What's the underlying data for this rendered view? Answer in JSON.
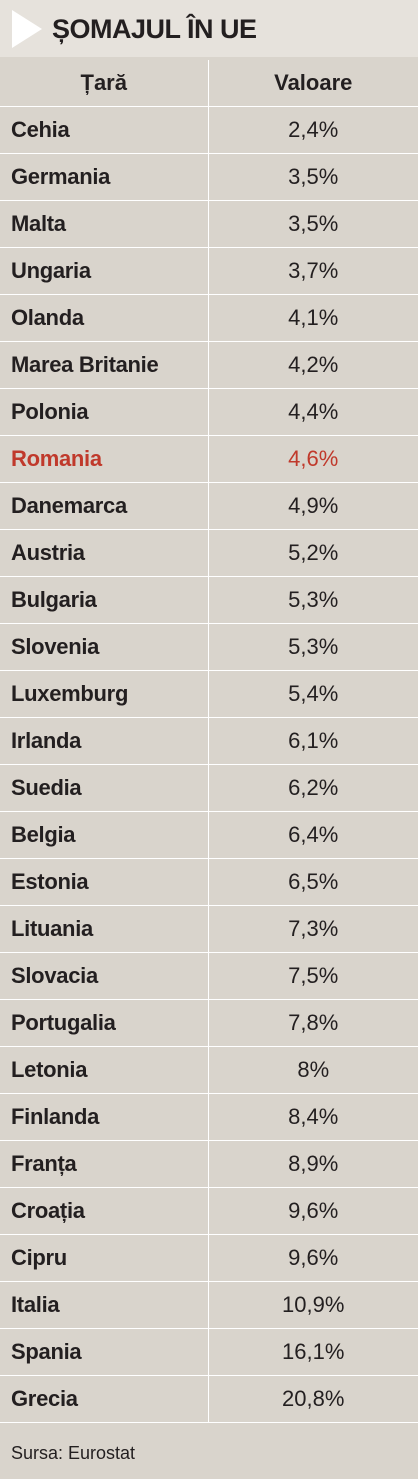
{
  "title": "ȘOMAJUL ÎN UE",
  "columns": [
    "Țară",
    "Valoare"
  ],
  "highlight_color": "#c0392b",
  "rows": [
    {
      "country": "Cehia",
      "value": "2,4%"
    },
    {
      "country": "Germania",
      "value": "3,5%"
    },
    {
      "country": "Malta",
      "value": "3,5%"
    },
    {
      "country": "Ungaria",
      "value": "3,7%"
    },
    {
      "country": "Olanda",
      "value": "4,1%"
    },
    {
      "country": "Marea Britanie",
      "value": "4,2%"
    },
    {
      "country": "Polonia",
      "value": "4,4%"
    },
    {
      "country": "Romania",
      "value": "4,6%",
      "highlight": true
    },
    {
      "country": "Danemarca",
      "value": "4,9%"
    },
    {
      "country": "Austria",
      "value": "5,2%"
    },
    {
      "country": "Bulgaria",
      "value": "5,3%"
    },
    {
      "country": "Slovenia",
      "value": "5,3%"
    },
    {
      "country": "Luxemburg",
      "value": "5,4%"
    },
    {
      "country": "Irlanda",
      "value": "6,1%"
    },
    {
      "country": "Suedia",
      "value": "6,2%"
    },
    {
      "country": "Belgia",
      "value": "6,4%"
    },
    {
      "country": "Estonia",
      "value": "6,5%"
    },
    {
      "country": "Lituania",
      "value": "7,3%"
    },
    {
      "country": "Slovacia",
      "value": "7,5%"
    },
    {
      "country": "Portugalia",
      "value": "7,8%"
    },
    {
      "country": "Letonia",
      "value": "8%"
    },
    {
      "country": "Finlanda",
      "value": "8,4%"
    },
    {
      "country": "Franța",
      "value": "8,9%"
    },
    {
      "country": "Croația",
      "value": "9,6%"
    },
    {
      "country": "Cipru",
      "value": "9,6%"
    },
    {
      "country": "Italia",
      "value": "10,9%"
    },
    {
      "country": "Spania",
      "value": "16,1%"
    },
    {
      "country": "Grecia",
      "value": "20,8%"
    }
  ],
  "source": "Sursa: Eurostat"
}
